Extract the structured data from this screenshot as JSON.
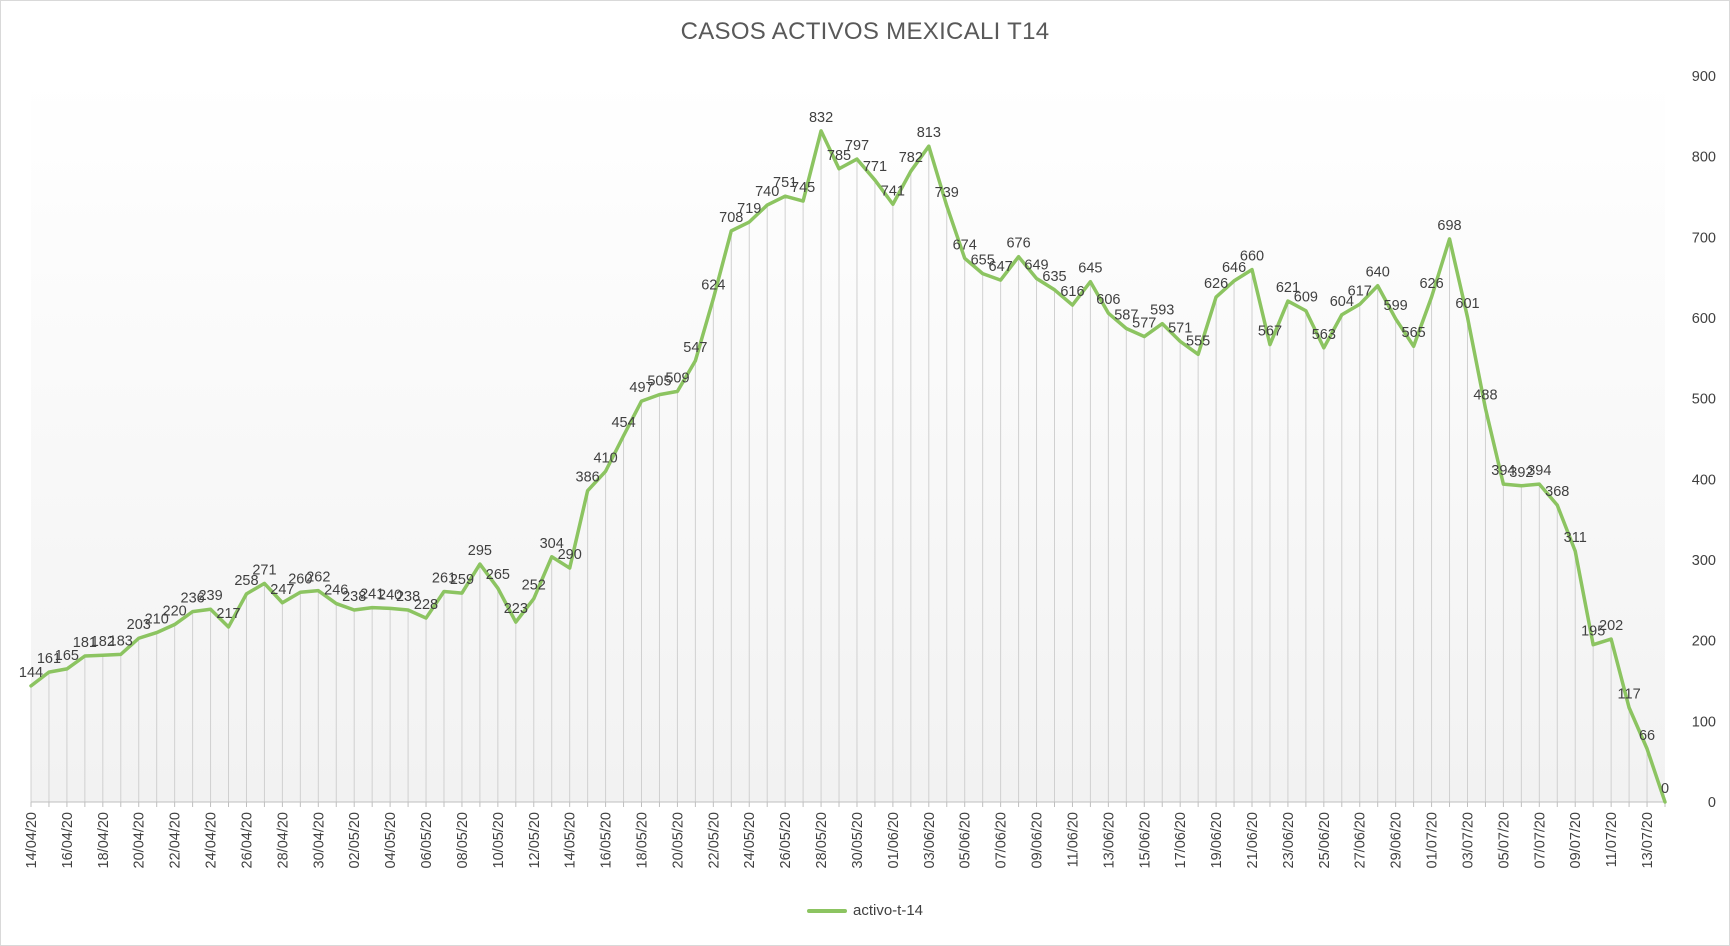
{
  "chart_data": {
    "type": "line",
    "title": "CASOS ACTIVOS MEXICALI T14",
    "xlabel": "",
    "ylabel": "",
    "ylim": [
      0,
      900
    ],
    "y_ticks": [
      0,
      100,
      200,
      300,
      400,
      500,
      600,
      700,
      800,
      900
    ],
    "y_axis_side": "right",
    "grid": "vertical drop lines",
    "legend_position": "bottom",
    "line_color": "#8cc461",
    "x_tick_labels": [
      "14/04/20",
      "16/04/20",
      "18/04/20",
      "20/04/20",
      "22/04/20",
      "24/04/20",
      "26/04/20",
      "28/04/20",
      "30/04/20",
      "02/05/20",
      "04/05/20",
      "06/05/20",
      "08/05/20",
      "10/05/20",
      "12/05/20",
      "14/05/20",
      "16/05/20",
      "18/05/20",
      "20/05/20",
      "22/05/20",
      "24/05/20",
      "26/05/20",
      "28/05/20",
      "30/05/20",
      "01/06/20",
      "03/06/20",
      "05/06/20",
      "07/06/20",
      "09/06/20",
      "11/06/20",
      "13/06/20",
      "15/06/20",
      "17/06/20",
      "19/06/20",
      "21/06/20",
      "23/06/20",
      "25/06/20",
      "27/06/20",
      "29/06/20",
      "01/07/20",
      "03/07/20",
      "05/07/20",
      "07/07/20",
      "09/07/20",
      "11/07/20",
      "13/07/20"
    ],
    "series": [
      {
        "name": "activo-t-14",
        "values": [
          144,
          161,
          165,
          181,
          182,
          183,
          203,
          210,
          220,
          236,
          239,
          217,
          258,
          271,
          247,
          260,
          262,
          246,
          238,
          241,
          240,
          238,
          228,
          261,
          259,
          295,
          265,
          223,
          252,
          304,
          290,
          386,
          410,
          454,
          497,
          505,
          509,
          547,
          624,
          708,
          719,
          740,
          751,
          745,
          832,
          785,
          797,
          771,
          741,
          782,
          813,
          739,
          674,
          655,
          647,
          676,
          649,
          635,
          616,
          645,
          606,
          587,
          577,
          593,
          571,
          555,
          626,
          646,
          660,
          567,
          621,
          609,
          563,
          604,
          617,
          640,
          599,
          565,
          626,
          698,
          601,
          488,
          394,
          392,
          394,
          368,
          311,
          195,
          202,
          117,
          66,
          0
        ]
      }
    ]
  }
}
